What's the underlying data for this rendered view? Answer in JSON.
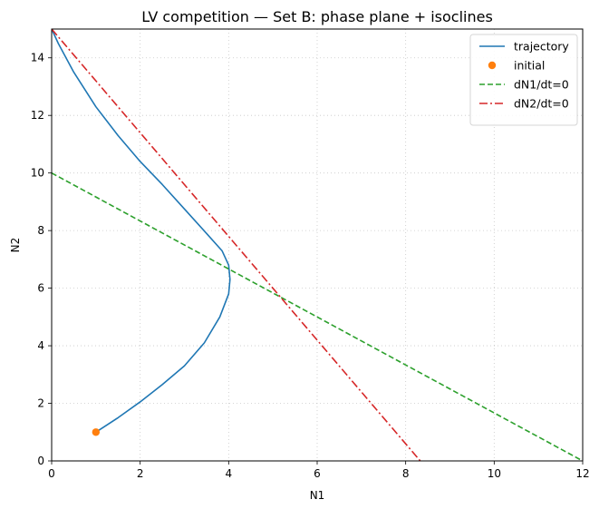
{
  "chart_data": {
    "type": "line",
    "title": "LV competition — Set B: phase plane + isoclines",
    "xlabel": "N1",
    "ylabel": "N2",
    "xlim": [
      0,
      12
    ],
    "ylim": [
      0,
      15
    ],
    "xticks": [
      "0",
      "2",
      "4",
      "6",
      "8",
      "10",
      "12"
    ],
    "yticks": [
      "0",
      "2",
      "4",
      "6",
      "8",
      "10",
      "12",
      "14"
    ],
    "grid": true,
    "legend_position": "top-right",
    "series": [
      {
        "name": "trajectory",
        "kind": "line",
        "color": "#1f77b4",
        "style": "solid",
        "points": [
          [
            1.0,
            1.0
          ],
          [
            1.5,
            1.5
          ],
          [
            2.0,
            2.05
          ],
          [
            2.5,
            2.65
          ],
          [
            3.0,
            3.3
          ],
          [
            3.45,
            4.1
          ],
          [
            3.8,
            5.0
          ],
          [
            4.0,
            5.8
          ],
          [
            4.03,
            6.3
          ],
          [
            4.0,
            6.8
          ],
          [
            3.85,
            7.3
          ],
          [
            3.5,
            7.9
          ],
          [
            3.0,
            8.75
          ],
          [
            2.5,
            9.6
          ],
          [
            2.0,
            10.4
          ],
          [
            1.5,
            11.3
          ],
          [
            1.0,
            12.3
          ],
          [
            0.5,
            13.5
          ],
          [
            0.15,
            14.5
          ],
          [
            0.0,
            15.0
          ]
        ]
      },
      {
        "name": "initial",
        "kind": "marker",
        "color": "#ff7f0e",
        "points": [
          [
            1.0,
            1.0
          ]
        ]
      },
      {
        "name": "dN1/dt=0",
        "kind": "line",
        "color": "#2ca02c",
        "style": "dashed",
        "points": [
          [
            0,
            10
          ],
          [
            12,
            0
          ]
        ]
      },
      {
        "name": "dN2/dt=0",
        "kind": "line",
        "color": "#d62728",
        "style": "dashdot",
        "points": [
          [
            0,
            15
          ],
          [
            8.33,
            0
          ]
        ]
      }
    ]
  }
}
